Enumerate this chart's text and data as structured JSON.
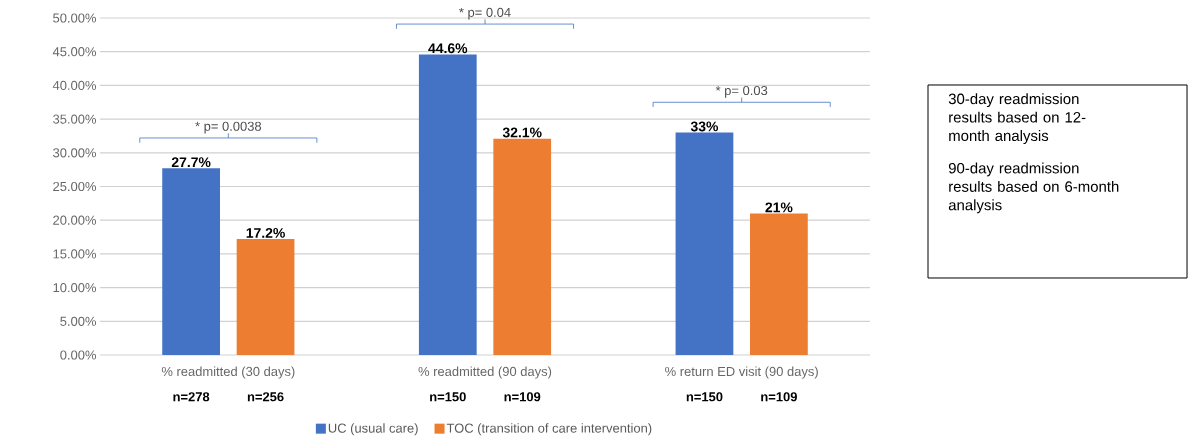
{
  "chart_data": {
    "type": "bar",
    "categories": [
      "% readmitted (30 days)",
      "% readmitted (90 days)",
      "% return ED visit (90 days)"
    ],
    "series": [
      {
        "name": "UC (usual care)",
        "color": "#4472c4",
        "values": [
          27.7,
          44.6,
          33
        ],
        "value_labels": [
          "27.7%",
          "44.6%",
          "33%"
        ]
      },
      {
        "name": "TOC (transition of care intervention)",
        "color": "#ed7d31",
        "values": [
          17.2,
          32.1,
          21
        ],
        "value_labels": [
          "17.2%",
          "32.1%",
          "21%"
        ]
      }
    ],
    "ylim": [
      0,
      50
    ],
    "yticks": [
      {
        "value": 0,
        "label": "0.00%"
      },
      {
        "value": 5,
        "label": "5.00%"
      },
      {
        "value": 10,
        "label": "10.00%"
      },
      {
        "value": 15,
        "label": "15.00%"
      },
      {
        "value": 20,
        "label": "20.00%"
      },
      {
        "value": 25,
        "label": "25.00%"
      },
      {
        "value": 30,
        "label": "30.00%"
      },
      {
        "value": 35,
        "label": "35.00%"
      },
      {
        "value": 40,
        "label": "40.00%"
      },
      {
        "value": 45,
        "label": "45.00%"
      },
      {
        "value": 50,
        "label": "50.00%"
      }
    ],
    "grid": "y",
    "legend": "bottom",
    "annotations": [
      "* p= 0.0038",
      "* p= 0.04",
      "* p= 0.03",
      "n=278",
      "n=256",
      "n=150",
      "n=109",
      "n=150",
      "n=109",
      "30-day readmission results based on 12-month analysis",
      "90-day readmission results based on 6-month analysis"
    ]
  }
}
